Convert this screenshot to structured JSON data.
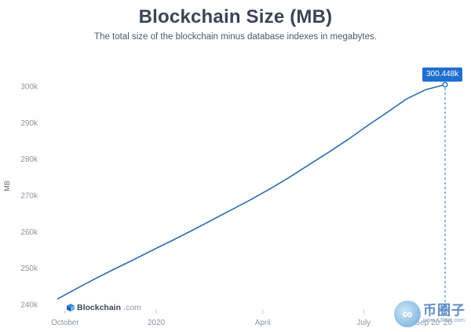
{
  "chart_data": {
    "type": "line",
    "title": "Blockchain Size (MB)",
    "subtitle": "The total size of the blockchain minus database indexes in megabytes.",
    "ylabel": "MB",
    "xlabel": "",
    "ylim": [
      240000,
      300000
    ],
    "y_ticks": [
      {
        "value": 240000,
        "label": "240k"
      },
      {
        "value": 250000,
        "label": "250k"
      },
      {
        "value": 260000,
        "label": "260k"
      },
      {
        "value": 270000,
        "label": "270k"
      },
      {
        "value": 280000,
        "label": "280k"
      },
      {
        "value": 290000,
        "label": "290k"
      },
      {
        "value": 300000,
        "label": "300k"
      }
    ],
    "x_ticks": [
      {
        "t": 0.02,
        "label": "October"
      },
      {
        "t": 0.255,
        "label": "2020"
      },
      {
        "t": 0.53,
        "label": "April"
      },
      {
        "t": 0.79,
        "label": "July"
      },
      {
        "t": 0.97,
        "label": "Sep 20 '20"
      }
    ],
    "series": [
      {
        "name": "Blockchain Size",
        "color": "#2b6cb0",
        "points": [
          [
            0.0,
            241500
          ],
          [
            0.05,
            244400
          ],
          [
            0.1,
            247200
          ],
          [
            0.15,
            249900
          ],
          [
            0.2,
            252500
          ],
          [
            0.25,
            255200
          ],
          [
            0.3,
            257800
          ],
          [
            0.35,
            260500
          ],
          [
            0.4,
            263300
          ],
          [
            0.45,
            266100
          ],
          [
            0.5,
            268900
          ],
          [
            0.55,
            271900
          ],
          [
            0.6,
            275100
          ],
          [
            0.65,
            278500
          ],
          [
            0.7,
            281900
          ],
          [
            0.75,
            285400
          ],
          [
            0.8,
            289200
          ],
          [
            0.85,
            292800
          ],
          [
            0.9,
            296500
          ],
          [
            0.95,
            299100
          ],
          [
            1.0,
            300448
          ]
        ]
      }
    ],
    "highlight": {
      "t": 1.0,
      "value": 300448,
      "label": "300.448k",
      "date": "Sep 20 '20"
    }
  },
  "brand": {
    "name": "Blockchain",
    "domain": ".com"
  },
  "watermark": {
    "cn": "币圈子",
    "url": "www.120btc.com"
  }
}
